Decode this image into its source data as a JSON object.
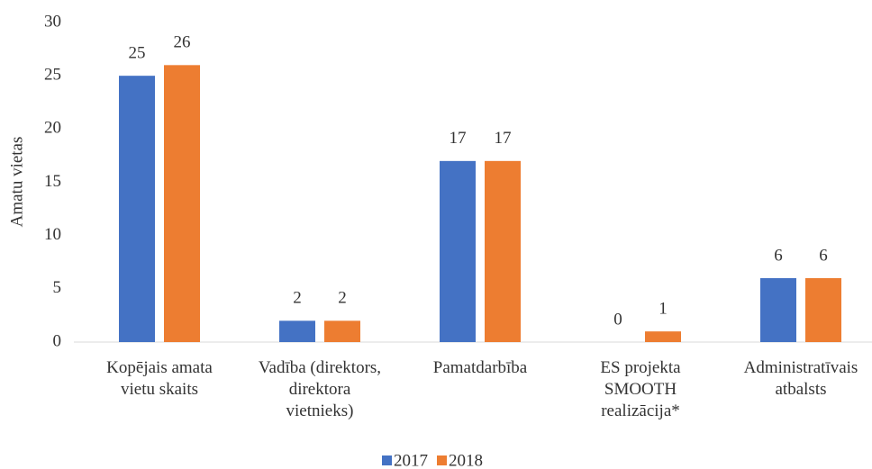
{
  "chart_data": {
    "type": "bar",
    "y_label": "Amatu vietas",
    "categories": [
      "Kopējais amata\nvietu skaits",
      "Vadība (direktors,\ndirektora\nvietnieks)",
      "Pamatdarbība",
      "ES projekta\nSMOOTH\nrealizācija*",
      "Administratīvais\natbalsts"
    ],
    "series": [
      {
        "name": "2017",
        "color": "#4472c4",
        "values": [
          25,
          2,
          17,
          0,
          6
        ]
      },
      {
        "name": "2018",
        "color": "#ed7d31",
        "values": [
          26,
          2,
          17,
          1,
          6
        ]
      }
    ],
    "ylim": [
      0,
      30
    ],
    "yticks": [
      0,
      5,
      10,
      15,
      20,
      25,
      30
    ],
    "grid": false,
    "legend": "bottom"
  }
}
